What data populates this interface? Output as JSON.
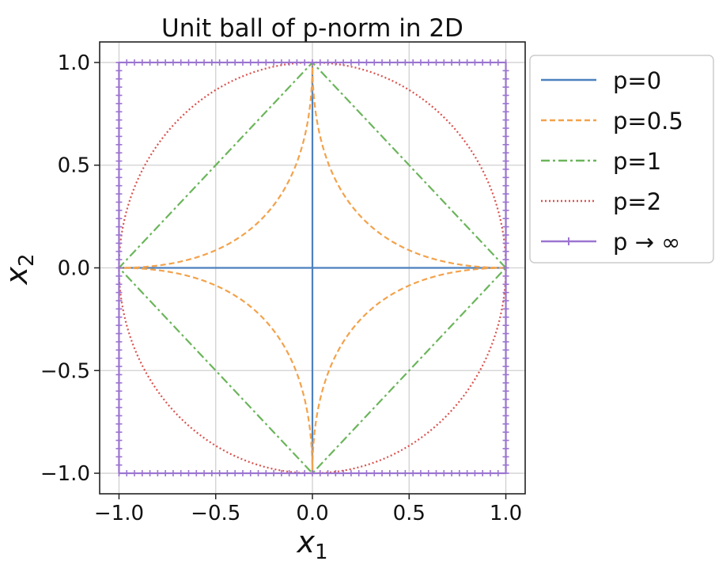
{
  "chart_data": {
    "type": "line",
    "title": "Unit ball of p-norm in 2D",
    "xlabel": {
      "base": "x",
      "sub": "1"
    },
    "ylabel": {
      "base": "x",
      "sub": "2"
    },
    "xlim": [
      -1.1,
      1.1
    ],
    "ylim": [
      -1.1,
      1.1
    ],
    "xticks": [
      -1.0,
      -0.5,
      0.0,
      0.5,
      1.0
    ],
    "yticks": [
      -1.0,
      -0.5,
      0.0,
      0.5,
      1.0
    ],
    "xtick_labels": [
      "−1.0",
      "−0.5",
      "0.0",
      "0.5",
      "1.0"
    ],
    "ytick_labels": [
      "−1.0",
      "−0.5",
      "0.0",
      "0.5",
      "1.0"
    ],
    "grid": true,
    "legend_position": "outside-right-top",
    "series": [
      {
        "name": "p=0",
        "color": "#4c81bf",
        "style": "solid",
        "segments": [
          [
            [
              -1.0,
              0.0
            ],
            [
              1.0,
              0.0
            ]
          ],
          [
            [
              0.0,
              -1.0
            ],
            [
              0.0,
              1.0
            ]
          ]
        ]
      },
      {
        "name": "p=0.5",
        "color": "#f3a24b",
        "style": "dashed",
        "curve_p": 0.5
      },
      {
        "name": "p=1",
        "color": "#6bb55b",
        "style": "dashdot",
        "points": [
          [
            1.0,
            0.0
          ],
          [
            0.0,
            1.0
          ],
          [
            -1.0,
            0.0
          ],
          [
            0.0,
            -1.0
          ],
          [
            1.0,
            0.0
          ]
        ]
      },
      {
        "name": "p=2",
        "color": "#d9534f",
        "style": "dotted",
        "curve_p": 2
      },
      {
        "name": "p → ∞",
        "color": "#9b74d0",
        "style": "solid-marker",
        "points": [
          [
            -1.0,
            -1.0
          ],
          [
            1.0,
            -1.0
          ],
          [
            1.0,
            1.0
          ],
          [
            -1.0,
            1.0
          ],
          [
            -1.0,
            -1.0
          ]
        ]
      }
    ]
  }
}
